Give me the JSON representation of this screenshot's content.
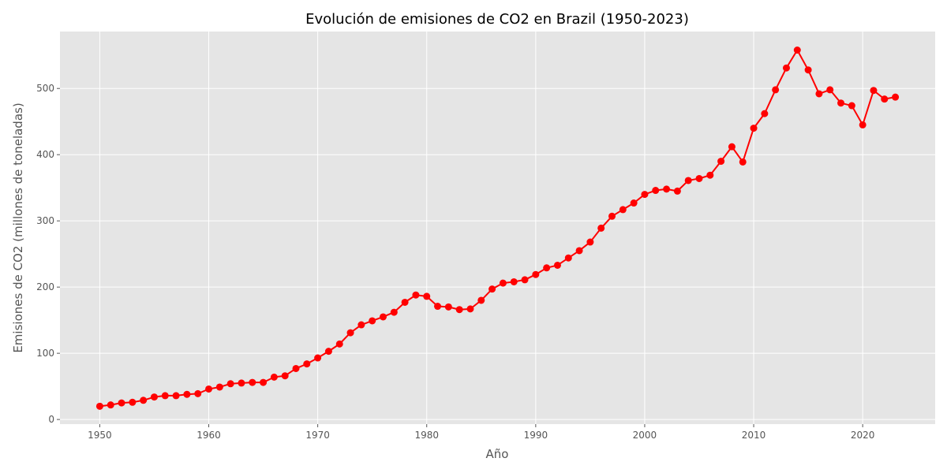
{
  "chart_data": {
    "type": "line",
    "title": "Evolución de emisiones de CO2 en Brazil (1950-2023)",
    "xlabel": "Año",
    "ylabel": "Emisiones de CO2 (millones de toneladas)",
    "xlim": [
      1946.35,
      2026.65
    ],
    "ylim": [
      -7.0,
      586.0
    ],
    "xticks": [
      1950,
      1960,
      1970,
      1980,
      1990,
      2000,
      2010,
      2020
    ],
    "yticks": [
      0,
      100,
      200,
      300,
      400,
      500
    ],
    "grid": true,
    "background": "#e5e5e5",
    "grid_color": "#ffffff",
    "series": [
      {
        "color": "#ff0000",
        "marker": "circle",
        "x": [
          1950,
          1951,
          1952,
          1953,
          1954,
          1955,
          1956,
          1957,
          1958,
          1959,
          1960,
          1961,
          1962,
          1963,
          1964,
          1965,
          1966,
          1967,
          1968,
          1969,
          1970,
          1971,
          1972,
          1973,
          1974,
          1975,
          1976,
          1977,
          1978,
          1979,
          1980,
          1981,
          1982,
          1983,
          1984,
          1985,
          1986,
          1987,
          1988,
          1989,
          1990,
          1991,
          1992,
          1993,
          1994,
          1995,
          1996,
          1997,
          1998,
          1999,
          2000,
          2001,
          2002,
          2003,
          2004,
          2005,
          2006,
          2007,
          2008,
          2009,
          2010,
          2011,
          2012,
          2013,
          2014,
          2015,
          2016,
          2017,
          2018,
          2019,
          2020,
          2021,
          2022,
          2023
        ],
        "y": [
          20,
          22,
          25,
          26,
          29,
          34,
          36,
          36,
          38,
          39,
          46,
          49,
          54,
          55,
          56,
          56,
          64,
          66,
          77,
          84,
          93,
          103,
          114,
          131,
          143,
          149,
          155,
          162,
          177,
          188,
          186,
          171,
          170,
          166,
          167,
          180,
          197,
          206,
          208,
          211,
          219,
          229,
          233,
          244,
          255,
          268,
          289,
          307,
          317,
          327,
          340,
          346,
          348,
          345,
          361,
          364,
          369,
          390,
          412,
          389,
          440,
          462,
          498,
          531,
          558,
          528,
          492,
          498,
          478,
          474,
          445,
          497,
          484,
          487
        ]
      }
    ]
  }
}
